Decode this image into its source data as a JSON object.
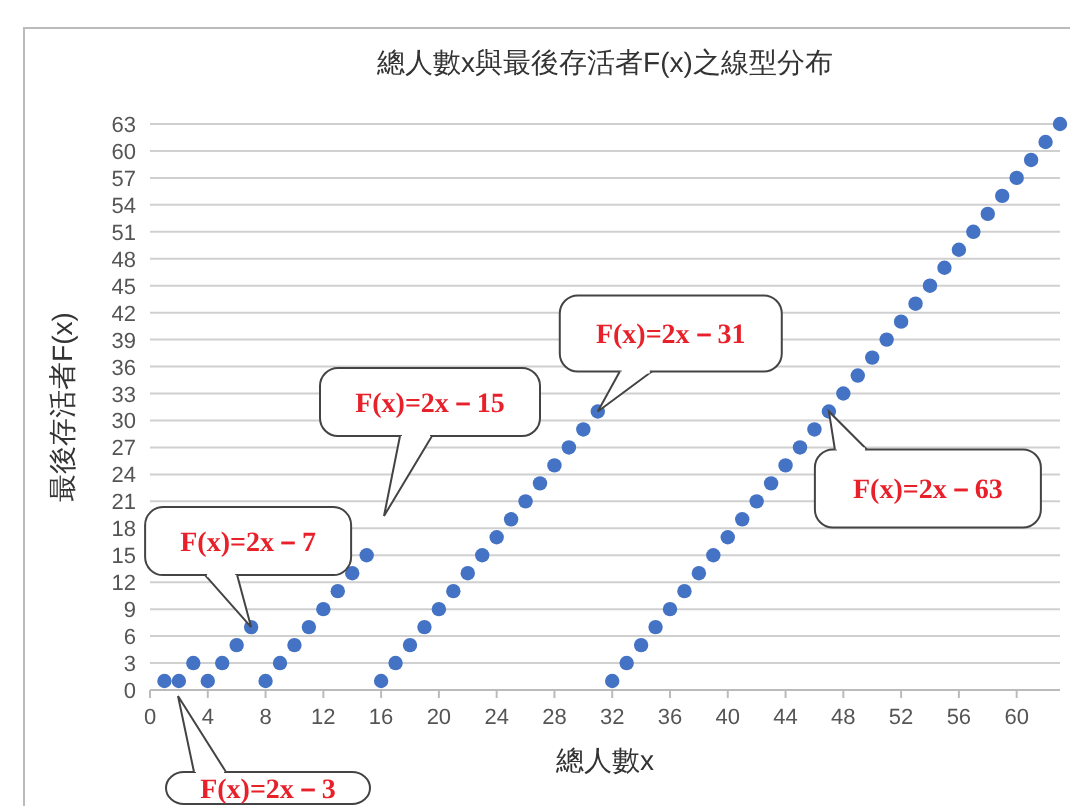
{
  "chart_data": {
    "type": "scatter",
    "title": "總人數x與最後存活者F(x)之線型分布",
    "xlabel": "總人數x",
    "ylabel": "最後存活者F(x)",
    "x": [
      1,
      2,
      3,
      4,
      5,
      6,
      7,
      8,
      9,
      10,
      11,
      12,
      13,
      14,
      15,
      16,
      17,
      18,
      19,
      20,
      21,
      22,
      23,
      24,
      25,
      26,
      27,
      28,
      29,
      30,
      31,
      32,
      33,
      34,
      35,
      36,
      37,
      38,
      39,
      40,
      41,
      42,
      43,
      44,
      45,
      46,
      47,
      48,
      49,
      50,
      51,
      52,
      53,
      54,
      55,
      56,
      57,
      58,
      59,
      60,
      61,
      62,
      63
    ],
    "series": [
      {
        "color": "#4472c4",
        "values": [
          1,
          1,
          3,
          1,
          3,
          5,
          7,
          1,
          3,
          5,
          7,
          9,
          11,
          13,
          15,
          1,
          3,
          5,
          7,
          9,
          11,
          13,
          15,
          17,
          19,
          21,
          23,
          25,
          27,
          29,
          31,
          1,
          3,
          5,
          7,
          9,
          11,
          13,
          15,
          17,
          19,
          21,
          23,
          25,
          27,
          29,
          31,
          33,
          35,
          37,
          39,
          41,
          43,
          45,
          47,
          49,
          51,
          53,
          55,
          57,
          59,
          61,
          63
        ]
      }
    ],
    "marker": "circle",
    "grid": "y",
    "xlim": [
      0,
      63
    ],
    "ylim": [
      0,
      63
    ],
    "xticks": [
      0,
      4,
      8,
      12,
      16,
      20,
      24,
      28,
      32,
      36,
      40,
      44,
      48,
      52,
      56,
      60
    ],
    "yticks": [
      0,
      3,
      6,
      9,
      12,
      15,
      18,
      21,
      24,
      27,
      30,
      33,
      36,
      39,
      42,
      45,
      48,
      51,
      54,
      57,
      60,
      63
    ],
    "annotations": [
      "F(x)=2x－3",
      {
        "text": "F(x)=2x－7",
        "x": 7,
        "y": 7
      },
      "F(x)=2x－15",
      {
        "text": "F(x)=2x－31",
        "x": 31,
        "y": 31
      },
      {
        "text": "F(x)=2x－63",
        "x": 47,
        "y": 31
      }
    ]
  }
}
